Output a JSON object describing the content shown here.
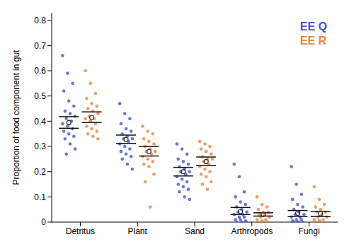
{
  "chart_data": {
    "type": "scatter",
    "categories": [
      "Detritus",
      "Plant",
      "Sand",
      "Arthropods",
      "Fungi"
    ],
    "ylabel": "Proportion of food component in gut",
    "ylim": [
      0,
      0.83
    ],
    "yticks": [
      0,
      0.1,
      0.2,
      0.3,
      0.4,
      0.5,
      0.6,
      0.7,
      0.8
    ],
    "grid": false,
    "legend": "top right",
    "series": [
      {
        "name": "EE Q",
        "color": "#4455cc",
        "values": [
          [
            0.66,
            0.59,
            0.55,
            0.52,
            0.48,
            0.46,
            0.44,
            0.43,
            0.42,
            0.41,
            0.4,
            0.39,
            0.38,
            0.37,
            0.36,
            0.35,
            0.34,
            0.33,
            0.31,
            0.29,
            0.27
          ],
          [
            0.47,
            0.43,
            0.41,
            0.39,
            0.37,
            0.36,
            0.35,
            0.34,
            0.33,
            0.33,
            0.32,
            0.31,
            0.3,
            0.29,
            0.28,
            0.27,
            0.26,
            0.25,
            0.23,
            0.21
          ],
          [
            0.31,
            0.29,
            0.27,
            0.25,
            0.24,
            0.23,
            0.22,
            0.21,
            0.2,
            0.2,
            0.19,
            0.18,
            0.17,
            0.16,
            0.15,
            0.14,
            0.13,
            0.12,
            0.1,
            0.09
          ],
          [
            0.23,
            0.18,
            0.12,
            0.1,
            0.08,
            0.07,
            0.06,
            0.05,
            0.04,
            0.04,
            0.03,
            0.03,
            0.02,
            0.02,
            0.01,
            0.01,
            0.005,
            0,
            0,
            0
          ],
          [
            0.22,
            0.15,
            0.11,
            0.09,
            0.07,
            0.06,
            0.05,
            0.04,
            0.03,
            0.03,
            0.02,
            0.02,
            0.01,
            0.01,
            0.005,
            0,
            0,
            0,
            0
          ]
        ],
        "mean": [
          0.395,
          0.328,
          0.2,
          0.042,
          0.035
        ],
        "ci_lower": [
          0.372,
          0.312,
          0.183,
          0.03,
          0.022
        ],
        "ci_upper": [
          0.418,
          0.345,
          0.217,
          0.058,
          0.046
        ]
      },
      {
        "name": "EE R",
        "color": "#e8843c",
        "values": [
          [
            0.6,
            0.55,
            0.51,
            0.49,
            0.47,
            0.46,
            0.45,
            0.44,
            0.43,
            0.42,
            0.41,
            0.41,
            0.4,
            0.39,
            0.38,
            0.37,
            0.36,
            0.35,
            0.34,
            0.33
          ],
          [
            0.38,
            0.36,
            0.35,
            0.33,
            0.32,
            0.31,
            0.3,
            0.29,
            0.28,
            0.28,
            0.27,
            0.26,
            0.25,
            0.24,
            0.23,
            0.22,
            0.19,
            0.16,
            0.06
          ],
          [
            0.32,
            0.31,
            0.3,
            0.29,
            0.28,
            0.27,
            0.26,
            0.25,
            0.25,
            0.24,
            0.23,
            0.22,
            0.21,
            0.2,
            0.19,
            0.18,
            0.16,
            0.15,
            0.13
          ],
          [
            0.1,
            0.07,
            0.06,
            0.05,
            0.04,
            0.04,
            0.03,
            0.03,
            0.02,
            0.02,
            0.01,
            0.01,
            0.005,
            0,
            0,
            0
          ],
          [
            0.14,
            0.09,
            0.07,
            0.06,
            0.05,
            0.04,
            0.04,
            0.03,
            0.02,
            0.02,
            0.01,
            0.01,
            0.005,
            0,
            0,
            0
          ]
        ],
        "mean": [
          0.415,
          0.28,
          0.24,
          0.03,
          0.033
        ],
        "ci_lower": [
          0.395,
          0.262,
          0.225,
          0.024,
          0.022
        ],
        "ci_upper": [
          0.437,
          0.3,
          0.258,
          0.037,
          0.042
        ]
      }
    ]
  }
}
